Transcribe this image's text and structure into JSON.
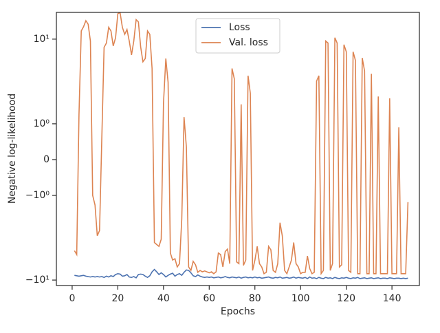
{
  "chart_data": {
    "type": "line",
    "xlabel": "Epochs",
    "ylabel": "Negative log-likelihood",
    "yscale": "symlog",
    "linthresh": 1,
    "xlim": [
      -6.9,
      152
    ],
    "xticks": [
      0,
      20,
      40,
      60,
      80,
      100,
      120,
      140
    ],
    "ylim": [
      -11.6,
      20.7
    ],
    "yticks": [
      {
        "value": -10,
        "label": "−10¹"
      },
      {
        "value": -1,
        "label": "−10⁰"
      },
      0,
      {
        "value": 1,
        "label": "10⁰"
      },
      {
        "value": 10,
        "label": "10¹"
      }
    ],
    "legend": "upper center",
    "x": [
      1,
      2,
      3,
      4,
      5,
      6,
      7,
      8,
      9,
      10,
      11,
      12,
      13,
      14,
      15,
      16,
      17,
      18,
      19,
      20,
      21,
      22,
      23,
      24,
      25,
      26,
      27,
      28,
      29,
      30,
      31,
      32,
      33,
      34,
      35,
      36,
      37,
      38,
      39,
      40,
      41,
      42,
      43,
      44,
      45,
      46,
      47,
      48,
      49,
      50,
      51,
      52,
      53,
      54,
      55,
      56,
      57,
      58,
      59,
      60,
      61,
      62,
      63,
      64,
      65,
      66,
      67,
      68,
      69,
      70,
      71,
      72,
      73,
      74,
      75,
      76,
      77,
      78,
      79,
      80,
      81,
      82,
      83,
      84,
      85,
      86,
      87,
      88,
      89,
      90,
      91,
      92,
      93,
      94,
      95,
      96,
      97,
      98,
      99,
      100,
      101,
      102,
      103,
      104,
      105,
      106,
      107,
      108,
      109,
      110,
      111,
      112,
      113,
      114,
      115,
      116,
      117,
      118,
      119,
      120,
      121,
      122,
      123,
      124,
      125,
      126,
      127,
      128,
      129,
      130,
      131,
      132,
      133,
      134,
      135,
      136,
      137,
      138,
      139,
      140,
      141,
      142,
      143,
      144,
      145,
      146,
      147
    ],
    "series": [
      {
        "name": "Loss",
        "color": "#4c72b0",
        "values": [
          -8.8,
          -8.9,
          -9.0,
          -8.9,
          -8.8,
          -9.0,
          -9.1,
          -9.2,
          -9.1,
          -9.2,
          -9.1,
          -9.2,
          -9.1,
          -9.3,
          -9.0,
          -9.2,
          -8.9,
          -9.1,
          -8.6,
          -8.4,
          -8.5,
          -9.0,
          -8.9,
          -8.6,
          -9.2,
          -9.3,
          -9.1,
          -9.4,
          -8.6,
          -8.5,
          -8.6,
          -9.0,
          -9.3,
          -8.9,
          -8.0,
          -7.5,
          -8.0,
          -8.6,
          -8.2,
          -8.6,
          -9.2,
          -8.8,
          -8.5,
          -8.3,
          -9.0,
          -8.6,
          -8.4,
          -8.8,
          -8.1,
          -7.6,
          -7.7,
          -8.2,
          -8.9,
          -9.1,
          -8.7,
          -9.0,
          -9.2,
          -9.3,
          -9.2,
          -9.3,
          -9.2,
          -9.4,
          -9.3,
          -9.2,
          -9.4,
          -9.3,
          -9.1,
          -9.3,
          -9.4,
          -9.2,
          -9.3,
          -9.4,
          -9.2,
          -9.5,
          -9.3,
          -9.2,
          -9.4,
          -9.3,
          -9.4,
          -9.2,
          -9.4,
          -9.3,
          -9.5,
          -9.4,
          -9.3,
          -9.2,
          -9.4,
          -9.5,
          -9.3,
          -9.4,
          -9.2,
          -9.5,
          -9.4,
          -9.3,
          -9.5,
          -9.4,
          -9.2,
          -9.5,
          -9.3,
          -9.4,
          -9.5,
          -9.3,
          -9.6,
          -9.2,
          -9.5,
          -9.4,
          -9.6,
          -9.3,
          -9.5,
          -9.6,
          -9.3,
          -9.5,
          -9.4,
          -9.6,
          -9.3,
          -9.5,
          -9.6,
          -9.4,
          -9.5,
          -9.3,
          -9.5,
          -9.6,
          -9.4,
          -9.5,
          -9.3,
          -9.6,
          -9.5,
          -9.4,
          -9.6,
          -9.5,
          -9.4,
          -9.6,
          -9.5,
          -9.4,
          -9.6,
          -9.5,
          -9.5,
          -9.6,
          -9.4,
          -9.5,
          -9.6,
          -9.5,
          -9.5,
          -9.6,
          -9.5,
          -9.6,
          -9.5
        ]
      },
      {
        "name": "Val. loss",
        "color": "#dd8452",
        "values": [
          -4.5,
          -5,
          1.3,
          12.5,
          14,
          16.5,
          15,
          9.5,
          -1,
          -1.3,
          -3,
          -2.6,
          0.6,
          8,
          9,
          13.8,
          12.5,
          8.3,
          10.4,
          20,
          20.5,
          13.8,
          11.4,
          13,
          9.5,
          6.5,
          9.5,
          17,
          16,
          8.1,
          5.4,
          5.9,
          12.5,
          11.4,
          4.5,
          -3.6,
          -3.8,
          -4,
          -3.3,
          1.75,
          5.9,
          3.1,
          -4.8,
          -5.8,
          -5.6,
          -7,
          -6.4,
          -1.9,
          1.2,
          0.35,
          -7,
          -7.7,
          -6,
          -6.6,
          -8.1,
          -7.7,
          -8,
          -7.8,
          -8,
          -8.2,
          -8,
          -8.4,
          -8,
          -4.8,
          -5,
          -7,
          -4.6,
          -4.3,
          -6.4,
          4.5,
          3.4,
          -6.1,
          -6.4,
          1.7,
          -6.7,
          -5.8,
          3.7,
          2.3,
          -7.7,
          -5.8,
          -4,
          -6.4,
          -7,
          -8.4,
          -8.1,
          -4,
          -4.4,
          -7.7,
          -8.1,
          -6.4,
          -2.1,
          -3,
          -7.7,
          -8.4,
          -7,
          -5.8,
          -3.6,
          -6.4,
          -7,
          -8.4,
          -8.1,
          -8.1,
          -5.2,
          -7.3,
          -8.4,
          -8.1,
          3.2,
          3.7,
          -8.4,
          -7.7,
          9.5,
          9,
          -7.7,
          -6.4,
          10.4,
          9,
          -7,
          -6.6,
          8.6,
          7.1,
          -7.7,
          -8.1,
          7.1,
          5.6,
          -8.4,
          -8.4,
          6.0,
          4.2,
          -8.4,
          -8.4,
          3.9,
          -8.4,
          -8.4,
          2.1,
          -8.4,
          -8.4,
          -8.4,
          -8.4,
          2.0,
          -8.4,
          -8.4,
          -8.4,
          0.9,
          -8.4,
          -8.4,
          -8.4,
          -1.2
        ]
      }
    ]
  }
}
